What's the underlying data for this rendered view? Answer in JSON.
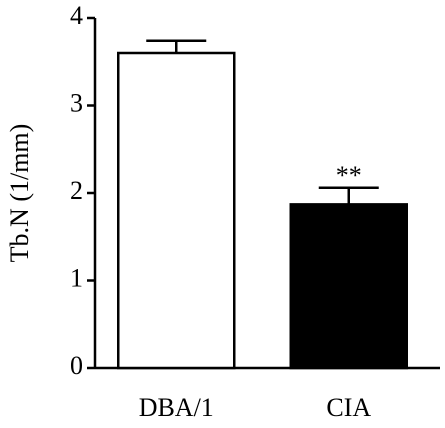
{
  "chart_data": {
    "type": "bar",
    "y_label": "Tb.N (1/mm)",
    "categories": [
      "DBA/1",
      "CIA"
    ],
    "values": [
      3.6,
      1.87
    ],
    "errors": [
      0.14,
      0.19
    ],
    "colors": [
      "#ffffff",
      "#000000"
    ],
    "annotations": [
      null,
      "**"
    ],
    "ylim": [
      0,
      4
    ],
    "yticks": [
      0,
      1,
      2,
      3,
      4
    ]
  }
}
